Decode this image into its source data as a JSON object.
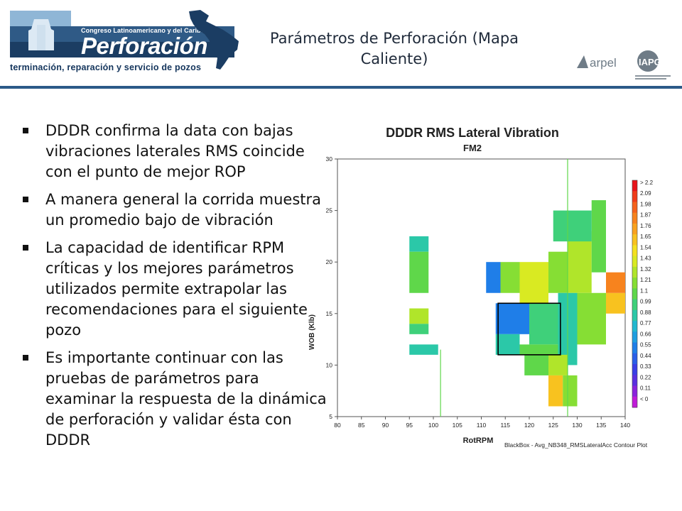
{
  "header": {
    "logo": {
      "congress_text": "Congreso Latinoamericano y del Caribe de",
      "word": "Perforación",
      "subtitle": "terminación, reparación y servicio de pozos"
    },
    "title_line1": "Parámetros de Perforación (Mapa",
    "title_line2": "Caliente)",
    "partners": {
      "arpel": "arpel",
      "iapg": "IAPG"
    },
    "accent_color": "#2b5a88"
  },
  "bullets": [
    {
      "text": "DDDR confirma la data con bajas vibraciones laterales RMS coincide con el punto de mejor ROP"
    },
    {
      "text": "A manera general la corrida muestra un promedio bajo de vibración"
    },
    {
      "text": "La capacidad de identificar RPM críticas y los mejores parámetros utilizados permite extrapolar las recomendaciones para el siguiente pozo"
    },
    {
      "text": "Es  importante continuar con las pruebas de parámetros para examinar la respuesta de la dinámica de perforación y validar ésta con DDDR"
    }
  ],
  "chart_data": {
    "type": "heatmap",
    "title": "DDDR RMS Lateral Vibration",
    "subtitle": "FM2",
    "xlabel": "RotRPM",
    "ylabel": "WOB (Klb)",
    "footnote": "BlackBox - Avg_NB348_RMSLateralAcc Contour Plot",
    "xlim": [
      80,
      140
    ],
    "ylim": [
      5,
      30
    ],
    "x_ticks": [
      "80",
      "85",
      "90",
      "95",
      "100",
      "105",
      "110",
      "115",
      "120",
      "125",
      "130",
      "135",
      "140"
    ],
    "y_ticks": [
      "5",
      "10",
      "15",
      "20",
      "25",
      "30"
    ],
    "colorbar": {
      "labels": [
        "> 2.2",
        "2.09",
        "1.98",
        "1.87",
        "1.76",
        "1.65",
        "1.54",
        "1.43",
        "1.32",
        "1.21",
        "1.1",
        "0.99",
        "0.88",
        "0.77",
        "0.66",
        "0.55",
        "0.44",
        "0.33",
        "0.22",
        "0.11",
        "< 0"
      ],
      "colors": [
        "#e8141b",
        "#f03c1a",
        "#f5621c",
        "#f7831e",
        "#f9a21f",
        "#f8c21f",
        "#f4e11f",
        "#d9ea22",
        "#b0e52a",
        "#86de34",
        "#5fd74a",
        "#3fd07a",
        "#2bc8a8",
        "#22b8d0",
        "#1f9ee0",
        "#1f7ee8",
        "#2a5ee8",
        "#3a3ee6",
        "#5a2ee0",
        "#8a22dc",
        "#c01ad8"
      ]
    },
    "highlight_box": {
      "x": [
        113.5,
        126.5
      ],
      "y": [
        11,
        16
      ]
    },
    "regions": [
      {
        "x": [
          95,
          99
        ],
        "y": [
          21,
          22.5
        ],
        "value": 0.9
      },
      {
        "x": [
          95,
          99
        ],
        "y": [
          17,
          21
        ],
        "value": 1.05
      },
      {
        "x": [
          95,
          99
        ],
        "y": [
          14,
          15.5
        ],
        "value": 1.3
      },
      {
        "x": [
          95,
          99
        ],
        "y": [
          13,
          14
        ],
        "value": 0.95
      },
      {
        "x": [
          95,
          101
        ],
        "y": [
          11,
          12
        ],
        "value": 0.9
      },
      {
        "x": [
          111,
          114
        ],
        "y": [
          17,
          20
        ],
        "value": 0.6
      },
      {
        "x": [
          114,
          118
        ],
        "y": [
          17,
          20
        ],
        "value": 1.2
      },
      {
        "x": [
          118,
          124
        ],
        "y": [
          16,
          20
        ],
        "value": 1.45
      },
      {
        "x": [
          124,
          128
        ],
        "y": [
          17,
          21
        ],
        "value": 1.25
      },
      {
        "x": [
          128,
          133
        ],
        "y": [
          17,
          23
        ],
        "value": 1.35
      },
      {
        "x": [
          133,
          136
        ],
        "y": [
          19,
          26
        ],
        "value": 1.15
      },
      {
        "x": [
          125,
          133
        ],
        "y": [
          22,
          25
        ],
        "value": 1.0
      },
      {
        "x": [
          136,
          140
        ],
        "y": [
          15,
          17
        ],
        "value": 1.6
      },
      {
        "x": [
          136,
          140
        ],
        "y": [
          17,
          19
        ],
        "value": 1.9
      },
      {
        "x": [
          113,
          120
        ],
        "y": [
          13,
          16
        ],
        "value": 0.6
      },
      {
        "x": [
          120,
          126
        ],
        "y": [
          12,
          16
        ],
        "value": 0.95
      },
      {
        "x": [
          113,
          118
        ],
        "y": [
          11,
          13
        ],
        "value": 0.85
      },
      {
        "x": [
          118,
          126
        ],
        "y": [
          11,
          12
        ],
        "value": 1.05
      },
      {
        "x": [
          126,
          130
        ],
        "y": [
          10,
          17
        ],
        "value": 0.9
      },
      {
        "x": [
          130,
          136
        ],
        "y": [
          12,
          17
        ],
        "value": 1.25
      },
      {
        "x": [
          119,
          124
        ],
        "y": [
          9,
          11
        ],
        "value": 1.1
      },
      {
        "x": [
          124,
          127
        ],
        "y": [
          6,
          9
        ],
        "value": 1.7
      },
      {
        "x": [
          127,
          130
        ],
        "y": [
          6,
          9
        ],
        "value": 1.25
      },
      {
        "x": [
          124,
          128
        ],
        "y": [
          9,
          11
        ],
        "value": 1.35
      }
    ]
  }
}
